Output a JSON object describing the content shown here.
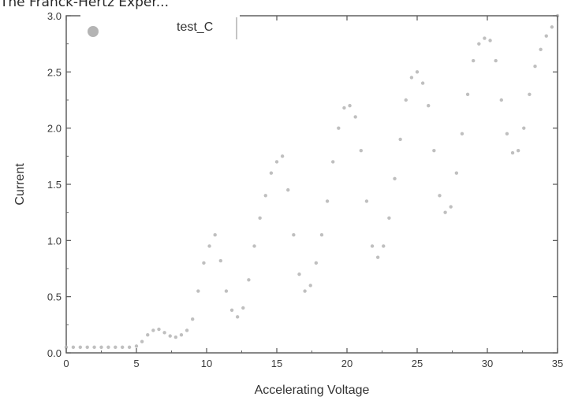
{
  "caption": "The Franck-Hertz Exper...",
  "chart_data": {
    "type": "scatter",
    "title": "",
    "xlabel": "Accelerating Voltage",
    "ylabel": "Current",
    "xlim": [
      0,
      35
    ],
    "ylim": [
      0,
      3.0
    ],
    "xticks": [
      0,
      5,
      10,
      15,
      20,
      25,
      30,
      35
    ],
    "yticks": [
      0.0,
      0.5,
      1.0,
      1.5,
      2.0,
      2.5,
      3.0
    ],
    "xtick_labels": [
      "0",
      "5",
      "10",
      "15",
      "20",
      "25",
      "30",
      "35"
    ],
    "ytick_labels": [
      "0.0",
      "0.5",
      "1.0",
      "1.5",
      "2.0",
      "2.5",
      "3.0"
    ],
    "grid": false,
    "legend": {
      "position": "top-left",
      "entries": [
        "test_C"
      ]
    },
    "series": [
      {
        "name": "test_C",
        "color": "#b4b4b4",
        "x": [
          0.0,
          0.5,
          1.0,
          1.5,
          2.0,
          2.5,
          3.0,
          3.5,
          4.0,
          4.5,
          5.0,
          5.4,
          5.8,
          6.2,
          6.6,
          7.0,
          7.4,
          7.8,
          8.2,
          8.6,
          9.0,
          9.4,
          9.8,
          10.2,
          10.6,
          11.0,
          11.4,
          11.8,
          12.2,
          12.6,
          13.0,
          13.4,
          13.8,
          14.2,
          14.6,
          15.0,
          15.4,
          15.8,
          16.2,
          16.6,
          17.0,
          17.4,
          17.8,
          18.2,
          18.6,
          19.0,
          19.4,
          19.8,
          20.2,
          20.6,
          21.0,
          21.4,
          21.8,
          22.2,
          22.6,
          23.0,
          23.4,
          23.8,
          24.2,
          24.6,
          25.0,
          25.4,
          25.8,
          26.2,
          26.6,
          27.0,
          27.4,
          27.8,
          28.2,
          28.6,
          29.0,
          29.4,
          29.8,
          30.2,
          30.6,
          31.0,
          31.4,
          31.8,
          32.2,
          32.6,
          33.0,
          33.4,
          33.8,
          34.2,
          34.6,
          35.0
        ],
        "y": [
          0.05,
          0.05,
          0.05,
          0.05,
          0.05,
          0.05,
          0.05,
          0.05,
          0.05,
          0.05,
          0.06,
          0.1,
          0.16,
          0.2,
          0.21,
          0.18,
          0.15,
          0.14,
          0.16,
          0.2,
          0.3,
          0.55,
          0.8,
          0.95,
          1.05,
          0.82,
          0.55,
          0.38,
          0.32,
          0.4,
          0.65,
          0.95,
          1.2,
          1.4,
          1.6,
          1.7,
          1.75,
          1.45,
          1.05,
          0.7,
          0.55,
          0.6,
          0.8,
          1.05,
          1.35,
          1.7,
          2.0,
          2.18,
          2.2,
          2.1,
          1.8,
          1.35,
          0.95,
          0.85,
          0.95,
          1.2,
          1.55,
          1.9,
          2.25,
          2.45,
          2.5,
          2.4,
          2.2,
          1.8,
          1.4,
          1.25,
          1.3,
          1.6,
          1.95,
          2.3,
          2.6,
          2.75,
          2.8,
          2.78,
          2.6,
          2.25,
          1.95,
          1.78,
          1.8,
          2.0,
          2.3,
          2.55,
          2.7,
          2.82,
          2.9,
          3.0
        ]
      }
    ]
  }
}
